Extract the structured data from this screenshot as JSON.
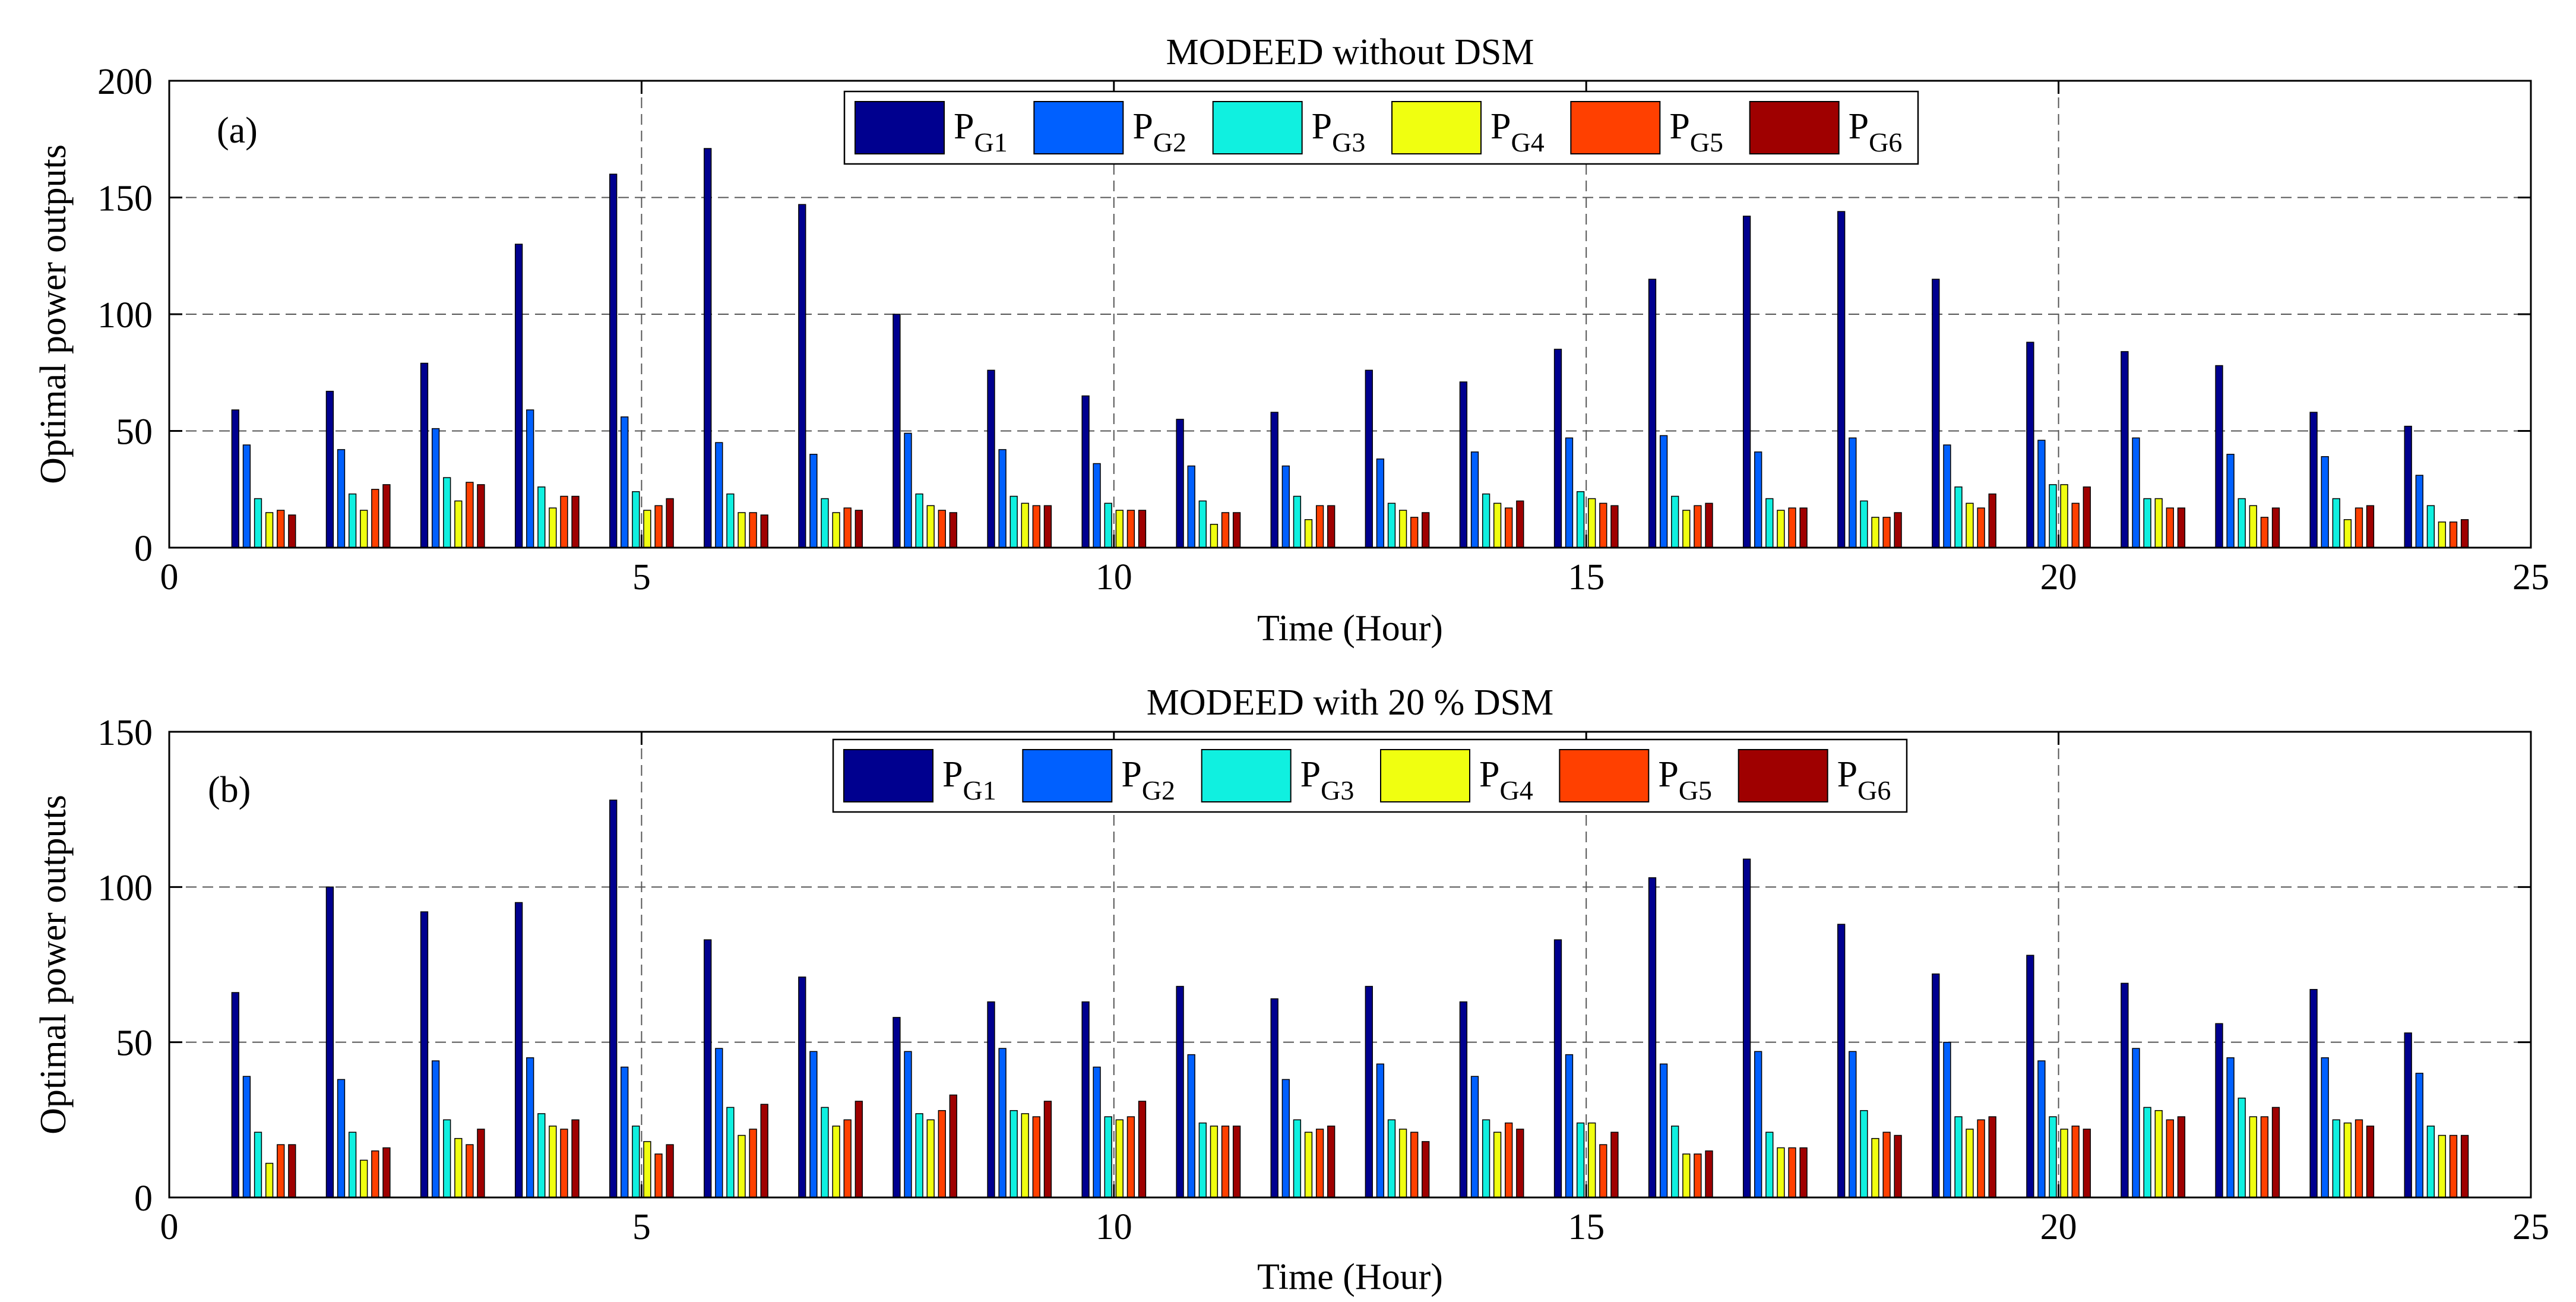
{
  "chart_data": [
    {
      "type": "bar",
      "panel_label": "(a)",
      "title": "MODEED without DSM",
      "xlabel": "Time (Hour)",
      "ylabel": "Optimal power outputs",
      "xlim": [
        0,
        25
      ],
      "ylim": [
        0,
        200
      ],
      "xticks": [
        0,
        5,
        10,
        15,
        20,
        25
      ],
      "yticks": [
        0,
        50,
        100,
        150,
        200
      ],
      "grid": "dashed, major ticks",
      "legend_position": "top-center",
      "legend_columns": 6,
      "x": [
        1,
        2,
        3,
        4,
        5,
        6,
        7,
        8,
        9,
        10,
        11,
        12,
        13,
        14,
        15,
        16,
        17,
        18,
        19,
        20,
        21,
        22,
        23,
        24
      ],
      "series": [
        {
          "name": "PG1",
          "label_main": "P",
          "label_sub": "G1",
          "color": "#00008F",
          "values": [
            59,
            67,
            79,
            130,
            160,
            171,
            147,
            100,
            76,
            65,
            55,
            58,
            76,
            71,
            85,
            115,
            142,
            144,
            115,
            88,
            84,
            78,
            58,
            52
          ]
        },
        {
          "name": "PG2",
          "label_main": "P",
          "label_sub": "G2",
          "color": "#0060FF",
          "values": [
            44,
            42,
            51,
            59,
            56,
            45,
            40,
            49,
            42,
            36,
            35,
            35,
            38,
            41,
            47,
            48,
            41,
            47,
            44,
            46,
            47,
            40,
            39,
            31
          ]
        },
        {
          "name": "PG3",
          "label_main": "P",
          "label_sub": "G3",
          "color": "#10F0E0",
          "values": [
            21,
            23,
            30,
            26,
            24,
            23,
            21,
            23,
            22,
            19,
            20,
            22,
            19,
            23,
            24,
            22,
            21,
            20,
            26,
            27,
            21,
            21,
            21,
            18
          ]
        },
        {
          "name": "PG4",
          "label_main": "P",
          "label_sub": "G4",
          "color": "#F0FF10",
          "values": [
            15,
            16,
            20,
            17,
            16,
            15,
            15,
            18,
            19,
            16,
            10,
            12,
            16,
            19,
            21,
            16,
            16,
            13,
            19,
            27,
            21,
            18,
            12,
            11
          ]
        },
        {
          "name": "PG5",
          "label_main": "P",
          "label_sub": "G5",
          "color": "#FF4000",
          "values": [
            16,
            25,
            28,
            22,
            18,
            15,
            17,
            16,
            18,
            16,
            15,
            18,
            13,
            17,
            19,
            18,
            17,
            13,
            17,
            19,
            17,
            13,
            17,
            11
          ]
        },
        {
          "name": "PG6",
          "label_main": "P",
          "label_sub": "G6",
          "color": "#9F0000",
          "values": [
            14,
            27,
            27,
            22,
            21,
            14,
            16,
            15,
            18,
            16,
            15,
            18,
            15,
            20,
            18,
            19,
            17,
            15,
            23,
            26,
            17,
            17,
            18,
            12
          ]
        }
      ]
    },
    {
      "type": "bar",
      "panel_label": "(b)",
      "title": "MODEED with 20 % DSM",
      "xlabel": "Time (Hour)",
      "ylabel": "Optimal power outputs",
      "xlim": [
        0,
        25
      ],
      "ylim": [
        0,
        150
      ],
      "xticks": [
        0,
        5,
        10,
        15,
        20,
        25
      ],
      "yticks": [
        0,
        50,
        100,
        150
      ],
      "grid": "dashed, major ticks",
      "legend_position": "top-center",
      "legend_columns": 6,
      "x": [
        1,
        2,
        3,
        4,
        5,
        6,
        7,
        8,
        9,
        10,
        11,
        12,
        13,
        14,
        15,
        16,
        17,
        18,
        19,
        20,
        21,
        22,
        23,
        24
      ],
      "series": [
        {
          "name": "PG1",
          "label_main": "P",
          "label_sub": "G1",
          "color": "#00008F",
          "values": [
            66,
            100,
            92,
            95,
            128,
            83,
            71,
            58,
            63,
            63,
            68,
            64,
            68,
            63,
            83,
            103,
            109,
            88,
            72,
            78,
            69,
            56,
            67,
            53
          ]
        },
        {
          "name": "PG2",
          "label_main": "P",
          "label_sub": "G2",
          "color": "#0060FF",
          "values": [
            39,
            38,
            44,
            45,
            42,
            48,
            47,
            47,
            48,
            42,
            46,
            38,
            43,
            39,
            46,
            43,
            47,
            47,
            50,
            44,
            48,
            45,
            45,
            40
          ]
        },
        {
          "name": "PG3",
          "label_main": "P",
          "label_sub": "G3",
          "color": "#10F0E0",
          "values": [
            21,
            21,
            25,
            27,
            23,
            29,
            29,
            27,
            28,
            26,
            24,
            25,
            25,
            25,
            24,
            23,
            21,
            28,
            26,
            26,
            29,
            32,
            25,
            23
          ]
        },
        {
          "name": "PG4",
          "label_main": "P",
          "label_sub": "G4",
          "color": "#F0FF10",
          "values": [
            11,
            12,
            19,
            23,
            18,
            20,
            23,
            25,
            27,
            25,
            23,
            21,
            22,
            21,
            24,
            14,
            16,
            19,
            22,
            22,
            28,
            26,
            24,
            20
          ]
        },
        {
          "name": "PG5",
          "label_main": "P",
          "label_sub": "G5",
          "color": "#FF4000",
          "values": [
            17,
            15,
            17,
            22,
            14,
            22,
            25,
            28,
            26,
            26,
            23,
            22,
            21,
            24,
            17,
            14,
            16,
            21,
            25,
            23,
            25,
            26,
            25,
            20
          ]
        },
        {
          "name": "PG6",
          "label_main": "P",
          "label_sub": "G6",
          "color": "#9F0000",
          "values": [
            17,
            16,
            22,
            25,
            17,
            30,
            31,
            33,
            31,
            31,
            23,
            23,
            18,
            22,
            21,
            15,
            16,
            20,
            26,
            22,
            26,
            29,
            23,
            20
          ]
        }
      ]
    }
  ]
}
